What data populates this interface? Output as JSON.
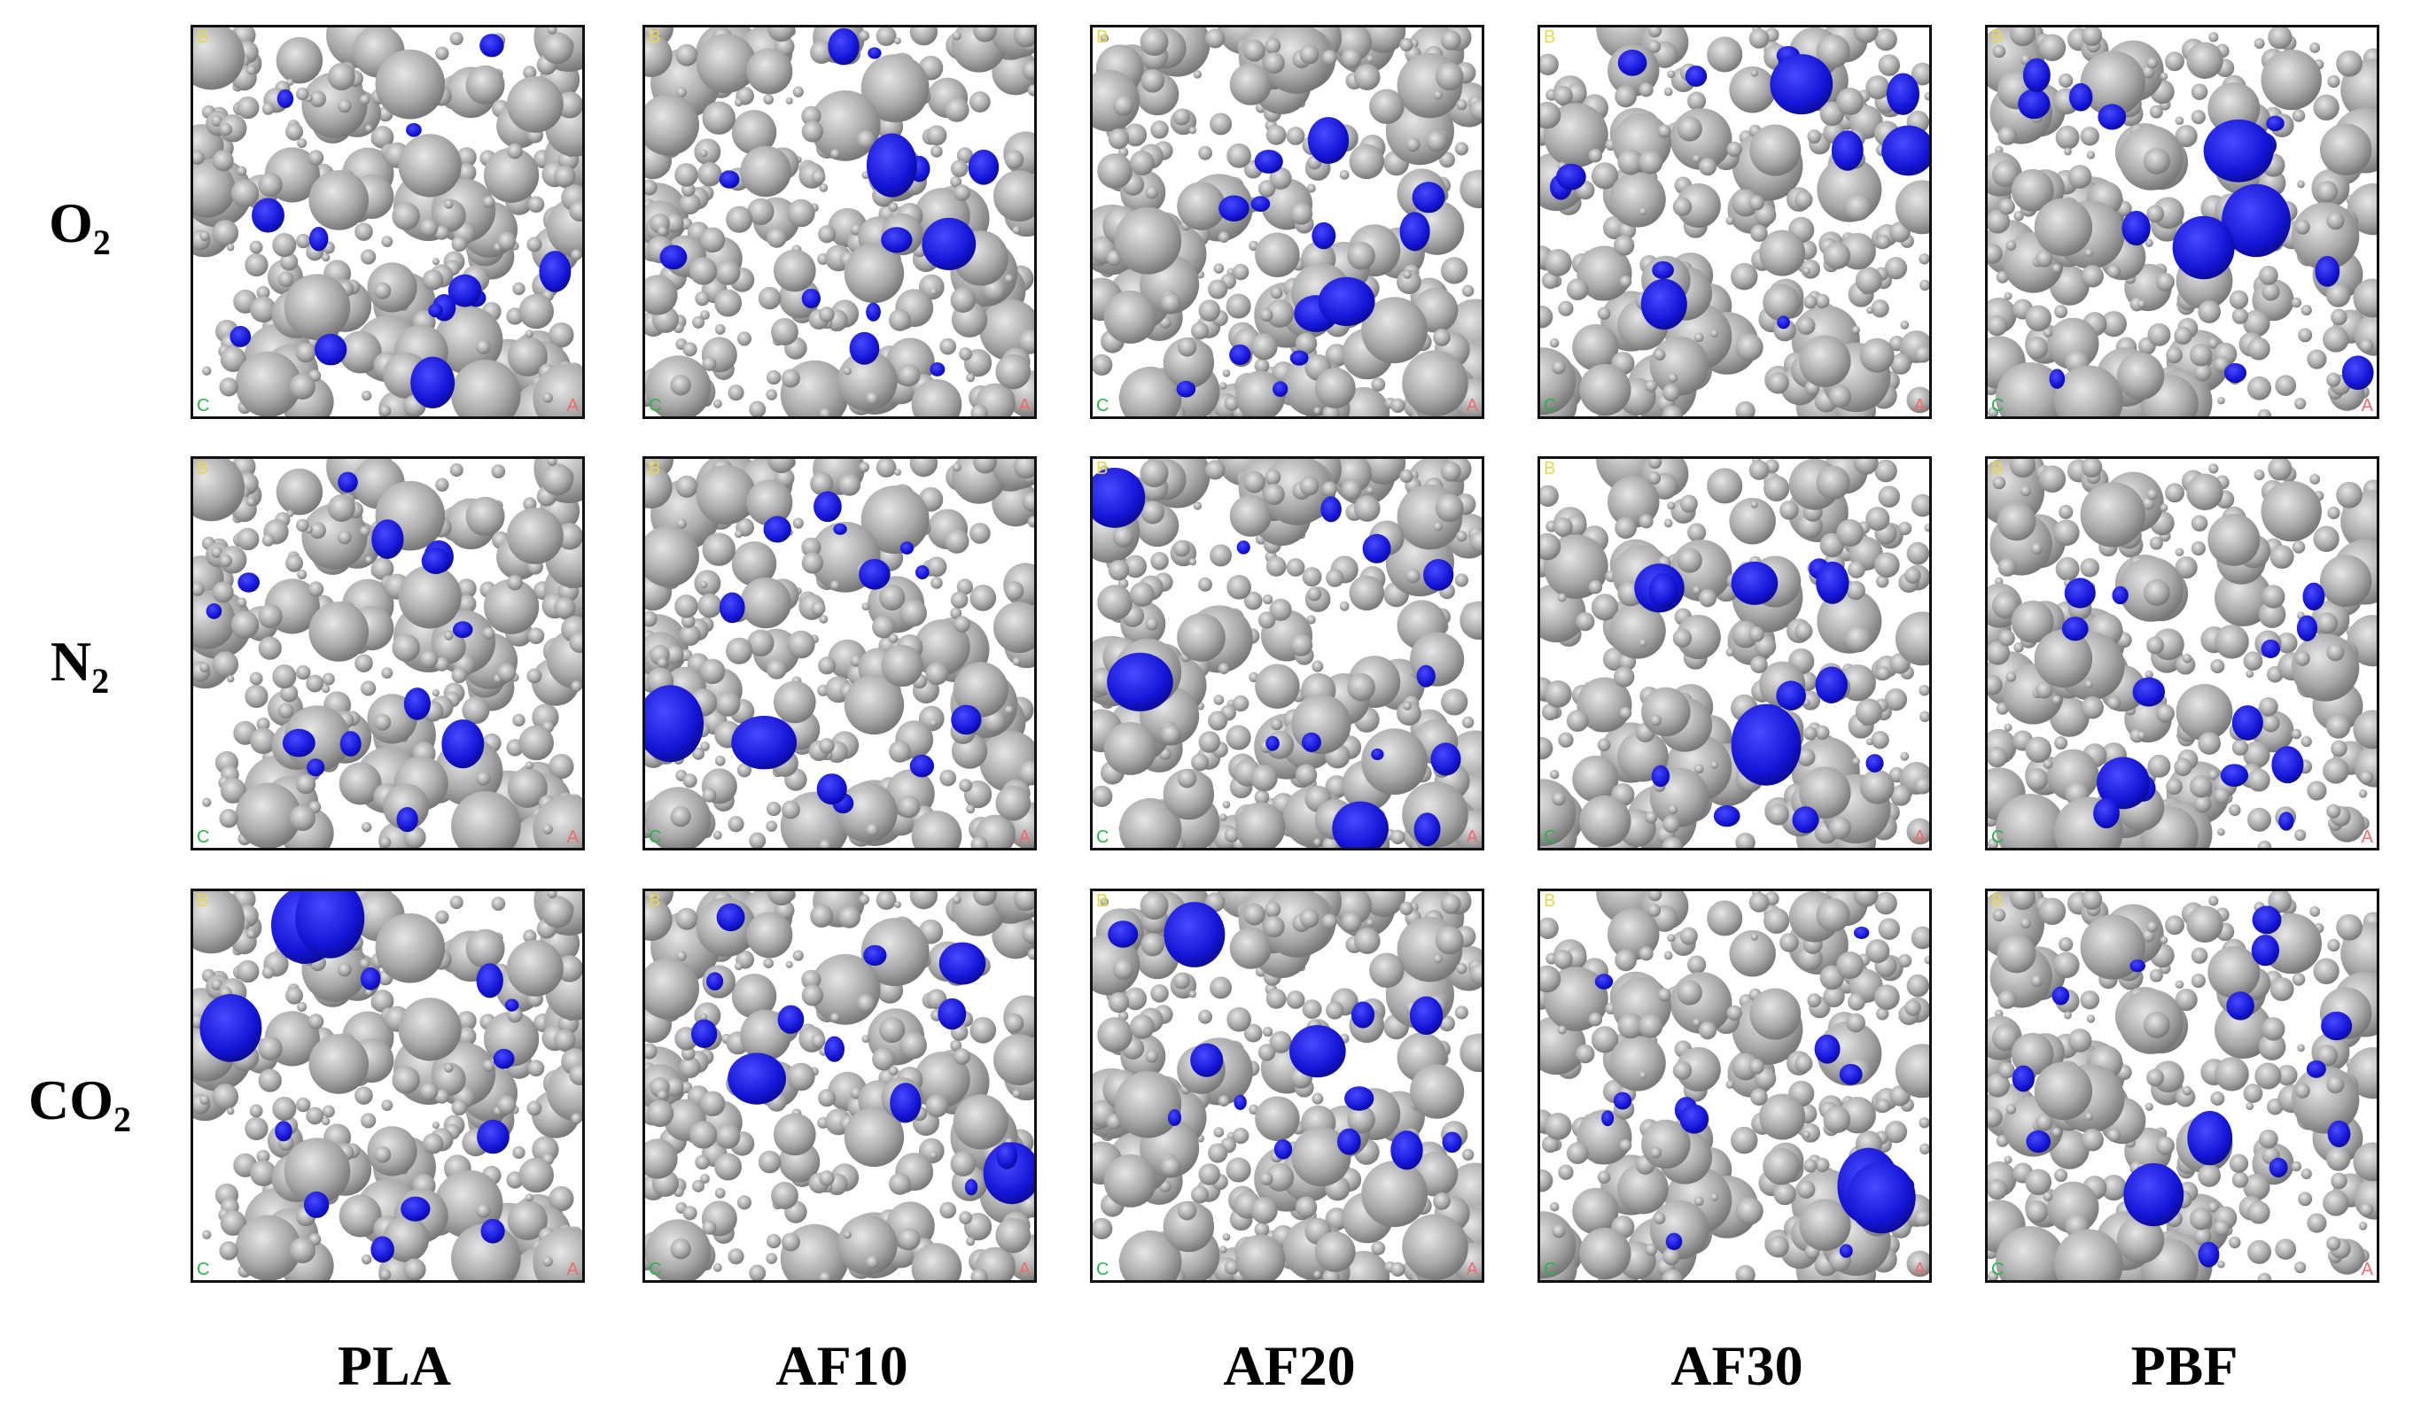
{
  "rows": [
    {
      "label": "O",
      "sub": "2"
    },
    {
      "label": "N",
      "sub": "2"
    },
    {
      "label": "CO",
      "sub": "2"
    }
  ],
  "columns": [
    "PLA",
    "AF10",
    "AF20",
    "AF30",
    "PBF"
  ],
  "axis_labels": {
    "a": "A",
    "b": "B",
    "c": "C"
  },
  "colors": {
    "framework": "#a8a8a8",
    "framework_dark": "#6e6e6e",
    "adsorbate": "#1414d6",
    "background": "#ffffff"
  }
}
